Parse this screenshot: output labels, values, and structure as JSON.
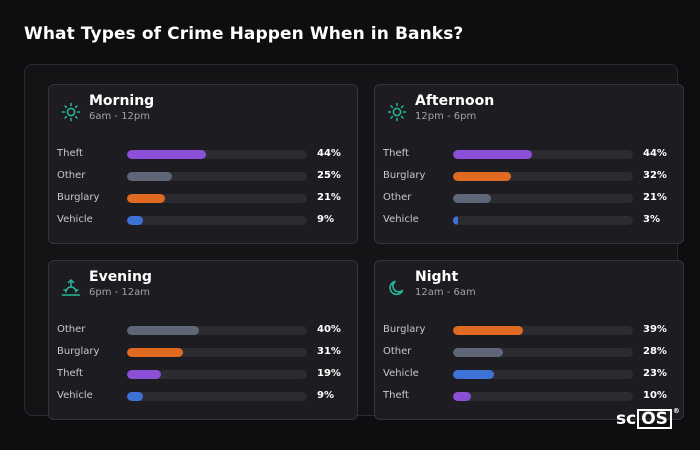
{
  "title": "What Types of Crime Happen When in Banks?",
  "logo": {
    "prefix": "sc",
    "boxed": "OS",
    "mark": "®"
  },
  "colors": {
    "Theft": "#8b4fd8",
    "Other": "#5f6677",
    "Burglary": "#e06a22",
    "Vehicle": "#3f72d6",
    "icon": "#26b89a"
  },
  "chart_data": [
    {
      "type": "bar",
      "title": "Morning",
      "subtitle": "6am - 12pm",
      "icon": "sun-icon",
      "categories": [
        "Theft",
        "Other",
        "Burglary",
        "Vehicle"
      ],
      "values": [
        44,
        25,
        21,
        9
      ],
      "labels": [
        "44%",
        "25%",
        "21%",
        "9%"
      ],
      "xlim": [
        0,
        100
      ]
    },
    {
      "type": "bar",
      "title": "Afternoon",
      "subtitle": "12pm - 6pm",
      "icon": "sun-icon",
      "categories": [
        "Theft",
        "Burglary",
        "Other",
        "Vehicle"
      ],
      "values": [
        44,
        32,
        21,
        3
      ],
      "labels": [
        "44%",
        "32%",
        "21%",
        "3%"
      ],
      "xlim": [
        0,
        100
      ]
    },
    {
      "type": "bar",
      "title": "Evening",
      "subtitle": "6pm - 12am",
      "icon": "sunrise-icon",
      "categories": [
        "Other",
        "Burglary",
        "Theft",
        "Vehicle"
      ],
      "values": [
        40,
        31,
        19,
        9
      ],
      "labels": [
        "40%",
        "31%",
        "19%",
        "9%"
      ],
      "xlim": [
        0,
        100
      ]
    },
    {
      "type": "bar",
      "title": "Night",
      "subtitle": "12am - 6am",
      "icon": "moon-icon",
      "categories": [
        "Burglary",
        "Other",
        "Vehicle",
        "Theft"
      ],
      "values": [
        39,
        28,
        23,
        10
      ],
      "labels": [
        "39%",
        "28%",
        "23%",
        "10%"
      ],
      "xlim": [
        0,
        100
      ]
    }
  ]
}
